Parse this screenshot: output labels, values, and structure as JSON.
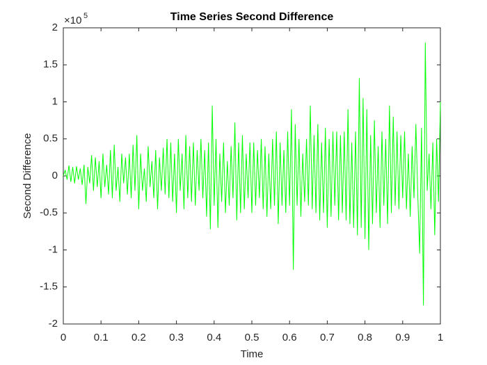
{
  "chart_data": {
    "type": "line",
    "title": "Time Series Second Difference",
    "x_label": "Time",
    "y_label": "Second Difference",
    "y_scale_label": "×10",
    "y_scale_exponent": "5",
    "xlim": [
      0,
      1
    ],
    "xticks": [
      0,
      0.1,
      0.2,
      0.3,
      0.4,
      0.5,
      0.6,
      0.7,
      0.8,
      0.9,
      1
    ],
    "ylim": [
      -2,
      2
    ],
    "yticks": [
      -2,
      -1.5,
      -1,
      -0.5,
      0,
      0.5,
      1,
      1.5,
      2
    ],
    "grid": false,
    "x": [
      0,
      0.005,
      0.01,
      0.015,
      0.02,
      0.025,
      0.03,
      0.035,
      0.04,
      0.045,
      0.05,
      0.055,
      0.06,
      0.065,
      0.07,
      0.075,
      0.08,
      0.085,
      0.09,
      0.095,
      0.1,
      0.105,
      0.11,
      0.115,
      0.12,
      0.125,
      0.13,
      0.135,
      0.14,
      0.145,
      0.15,
      0.155,
      0.16,
      0.165,
      0.17,
      0.175,
      0.18,
      0.185,
      0.19,
      0.195,
      0.2,
      0.205,
      0.21,
      0.215,
      0.22,
      0.225,
      0.23,
      0.235,
      0.24,
      0.245,
      0.25,
      0.255,
      0.26,
      0.265,
      0.27,
      0.275,
      0.28,
      0.285,
      0.29,
      0.295,
      0.3,
      0.305,
      0.31,
      0.315,
      0.32,
      0.325,
      0.33,
      0.335,
      0.34,
      0.345,
      0.35,
      0.355,
      0.36,
      0.365,
      0.37,
      0.375,
      0.38,
      0.385,
      0.39,
      0.395,
      0.4,
      0.405,
      0.41,
      0.415,
      0.42,
      0.425,
      0.43,
      0.435,
      0.44,
      0.445,
      0.45,
      0.455,
      0.46,
      0.465,
      0.47,
      0.475,
      0.48,
      0.485,
      0.49,
      0.495,
      0.5,
      0.505,
      0.51,
      0.515,
      0.52,
      0.525,
      0.53,
      0.535,
      0.54,
      0.545,
      0.55,
      0.555,
      0.56,
      0.565,
      0.57,
      0.575,
      0.58,
      0.585,
      0.59,
      0.595,
      0.6,
      0.605,
      0.61,
      0.615,
      0.62,
      0.625,
      0.63,
      0.635,
      0.64,
      0.645,
      0.65,
      0.655,
      0.66,
      0.665,
      0.67,
      0.675,
      0.68,
      0.685,
      0.69,
      0.695,
      0.7,
      0.705,
      0.71,
      0.715,
      0.72,
      0.725,
      0.73,
      0.735,
      0.74,
      0.745,
      0.75,
      0.755,
      0.76,
      0.765,
      0.77,
      0.775,
      0.78,
      0.785,
      0.79,
      0.795,
      0.8,
      0.805,
      0.81,
      0.815,
      0.82,
      0.825,
      0.83,
      0.835,
      0.84,
      0.845,
      0.85,
      0.855,
      0.86,
      0.865,
      0.87,
      0.875,
      0.88,
      0.885,
      0.89,
      0.895,
      0.9,
      0.905,
      0.91,
      0.915,
      0.92,
      0.925,
      0.93,
      0.935,
      0.94,
      0.945,
      0.95,
      0.955,
      0.96,
      0.965,
      0.97,
      0.975,
      0.98,
      0.985,
      0.99,
      0.995,
      1
    ],
    "series": [
      {
        "color": "#00ff00",
        "values": [
          0,
          0.08,
          -0.05,
          0.14,
          -0.08,
          0.12,
          -0.1,
          0.13,
          -0.05,
          0.1,
          -0.12,
          0.15,
          -0.38,
          0.12,
          -0.1,
          0.28,
          -0.2,
          0.25,
          -0.15,
          0.2,
          -0.3,
          0.3,
          -0.15,
          0.15,
          -0.25,
          0.35,
          -0.3,
          0.42,
          -0.2,
          0.12,
          -0.35,
          0.3,
          -0.1,
          0.25,
          -0.25,
          0.3,
          -0.3,
          0.42,
          -0.2,
          0.55,
          -0.45,
          0.3,
          -0.2,
          0.1,
          -0.35,
          0.4,
          -0.15,
          0.2,
          -0.3,
          0.35,
          -0.45,
          0.25,
          -0.2,
          0.38,
          -0.25,
          0.5,
          -0.3,
          0.45,
          -0.35,
          0.3,
          -0.5,
          0.5,
          -0.2,
          0.3,
          -0.45,
          0.55,
          -0.3,
          0.4,
          -0.35,
          0.45,
          -0.4,
          0.35,
          -0.2,
          0.5,
          -0.3,
          0.35,
          -0.55,
          0.45,
          -0.72,
          0.95,
          -0.4,
          0.5,
          -0.7,
          0.3,
          -0.35,
          0.45,
          -0.5,
          0.2,
          -0.4,
          0.4,
          -0.3,
          0.72,
          -0.6,
          0.45,
          -0.5,
          0.55,
          -0.45,
          0.3,
          -0.3,
          0.45,
          -0.5,
          0.45,
          -0.4,
          0.35,
          -0.3,
          0.5,
          -0.45,
          0.4,
          -0.55,
          0.3,
          -0.45,
          0.5,
          -0.4,
          0.6,
          -0.65,
          0.45,
          -0.4,
          0.35,
          -0.5,
          0.6,
          -0.4,
          0.9,
          -1.27,
          0.7,
          -0.4,
          0.5,
          -0.55,
          0.3,
          -0.35,
          0.5,
          -0.4,
          0.95,
          -0.45,
          0.55,
          -0.5,
          0.7,
          -0.6,
          0.45,
          -0.5,
          0.65,
          -0.7,
          0.5,
          -0.55,
          0.6,
          -0.4,
          0.6,
          -0.6,
          0.55,
          -0.5,
          0.6,
          -0.6,
          0.9,
          -0.65,
          0.45,
          -0.7,
          0.6,
          -0.8,
          1.32,
          -0.7,
          1.05,
          -0.85,
          0.9,
          -1.0,
          0.55,
          -0.65,
          0.75,
          -0.5,
          0.4,
          -0.7,
          0.6,
          -0.4,
          0.5,
          -0.65,
          0.95,
          -0.5,
          0.8,
          -0.4,
          0.6,
          -0.45,
          0.55,
          -0.3,
          0.6,
          -0.45,
          0.3,
          -0.55,
          0.4,
          -0.3,
          0.7,
          -0.25,
          -1.05,
          0.65,
          -1.75,
          1.8,
          -0.2,
          0.3,
          -0.45,
          0.45,
          -0.8,
          0.5,
          -0.35,
          1.0
        ]
      }
    ]
  }
}
